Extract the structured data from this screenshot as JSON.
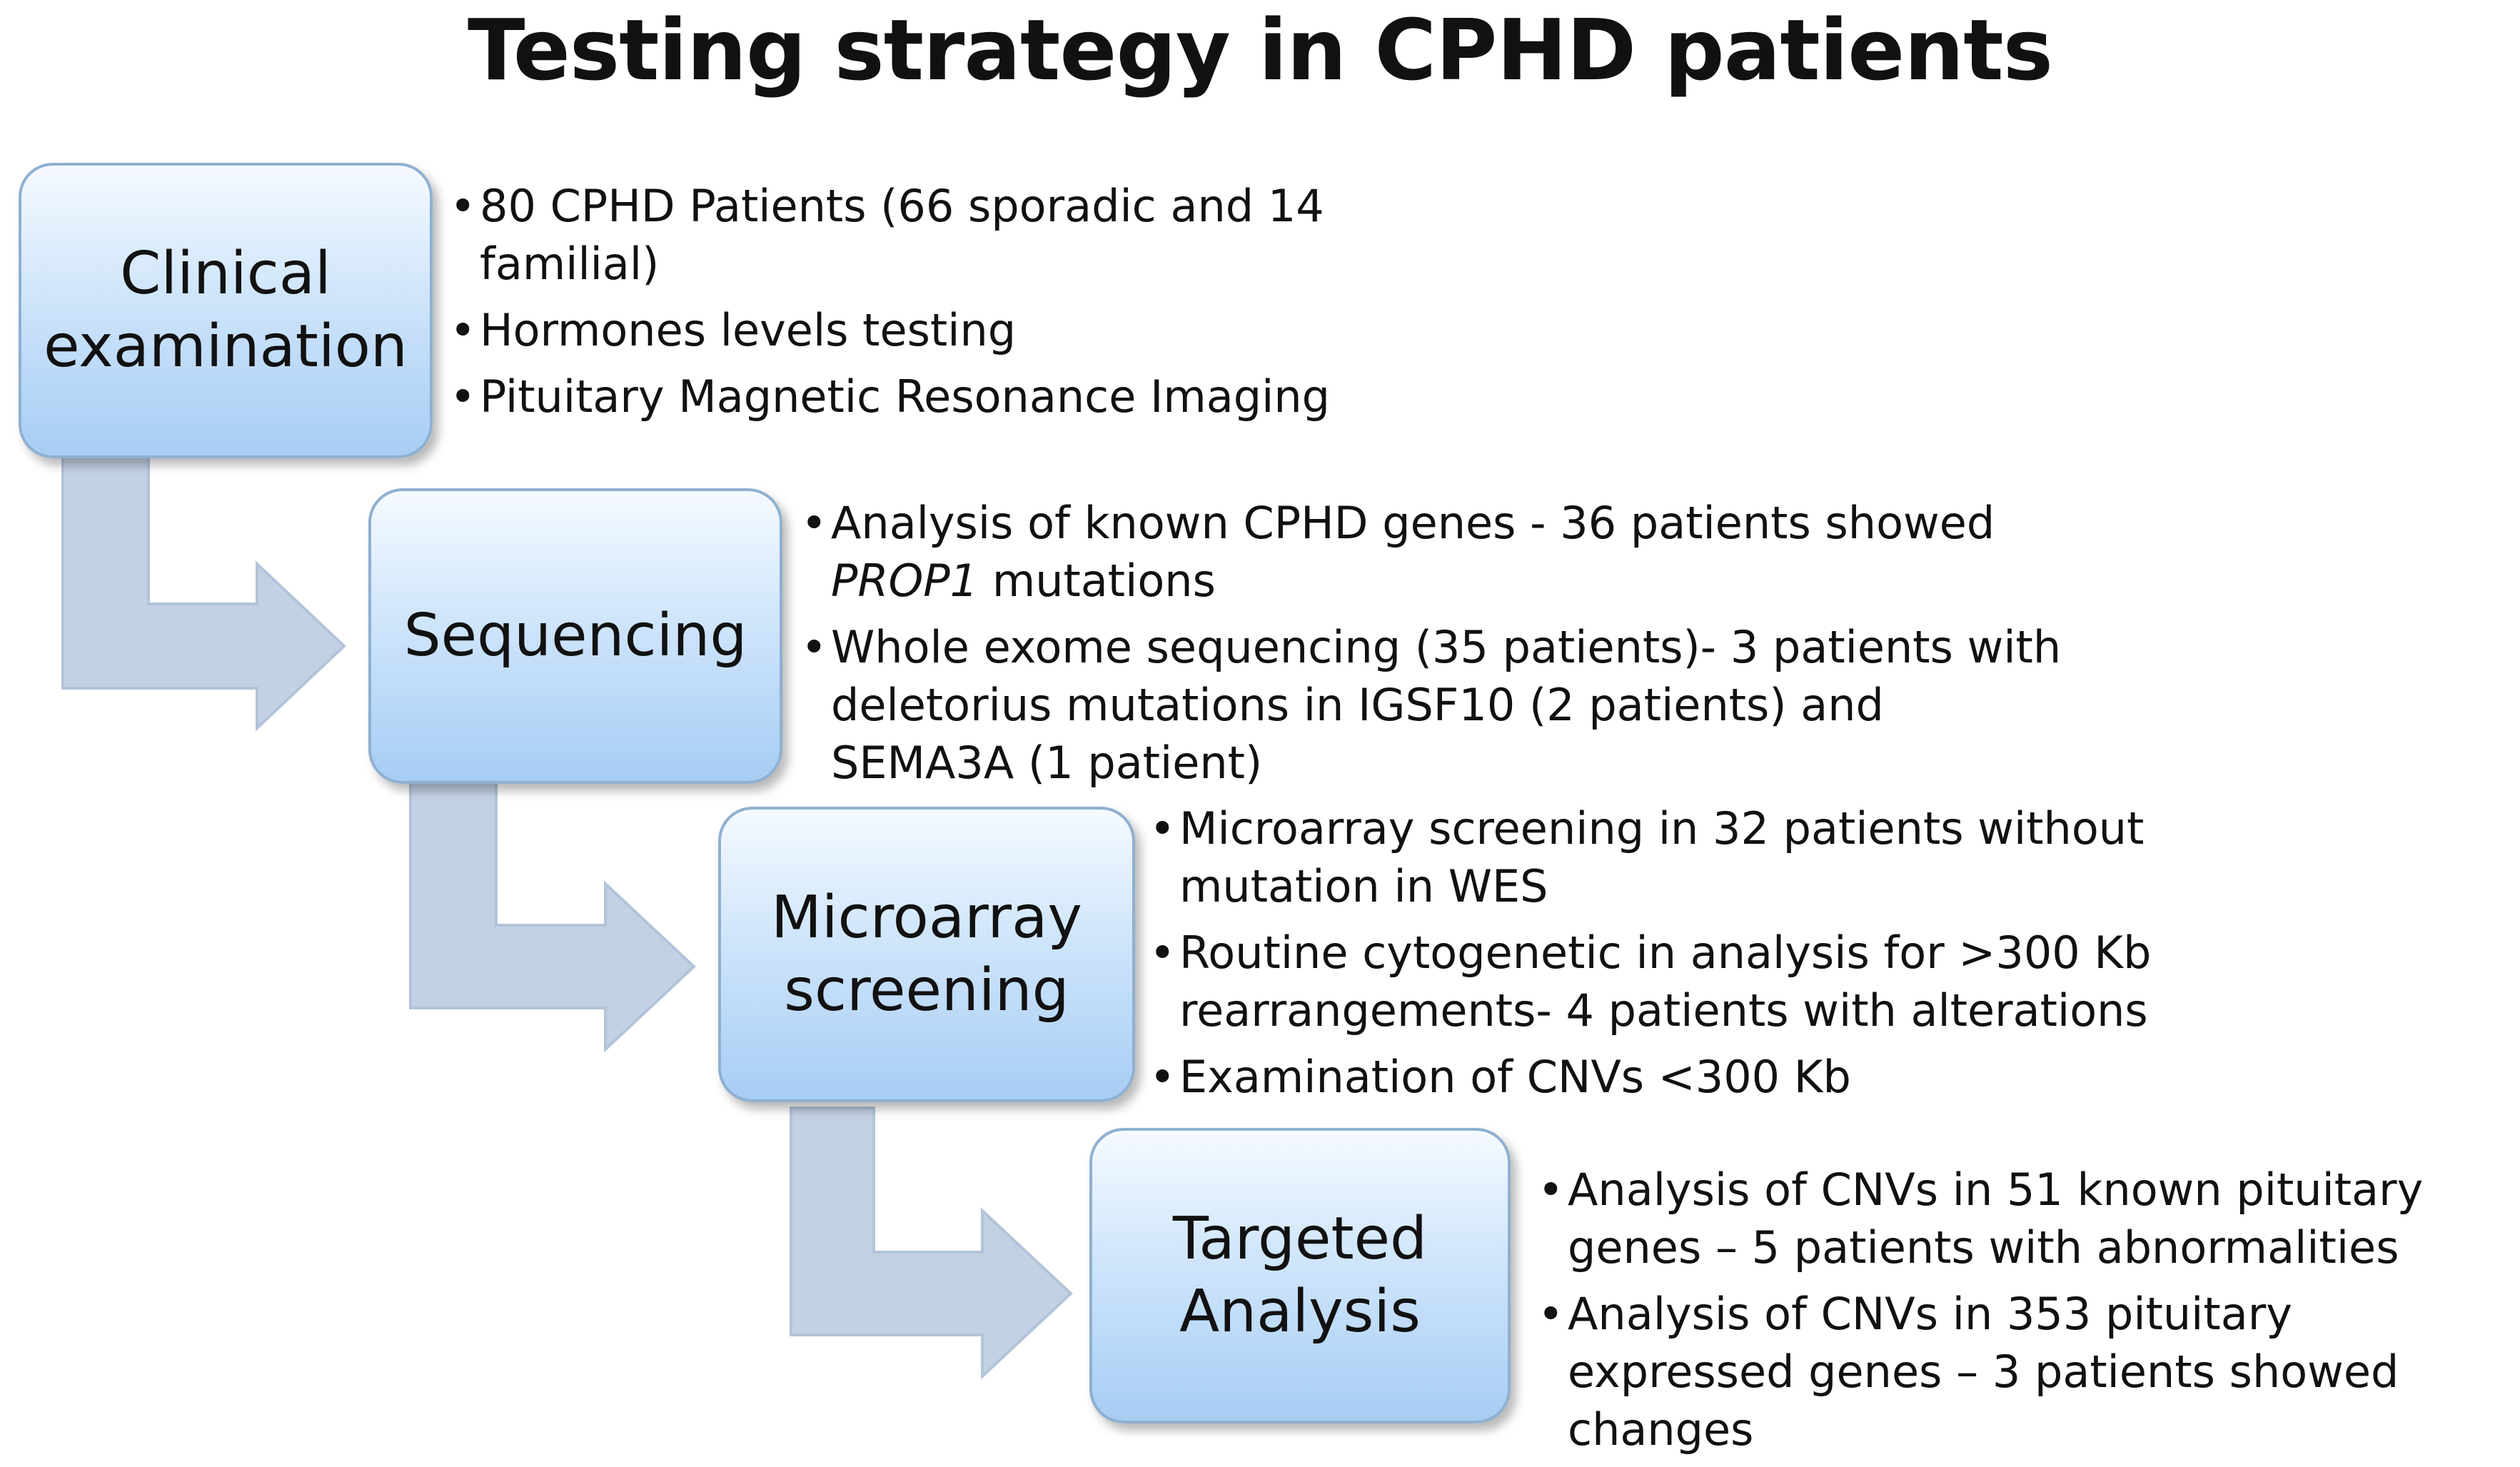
{
  "title": "Testing strategy in CPHD patients",
  "steps": [
    {
      "label": "Clinical\nexamination",
      "bullets": [
        "80 CPHD Patients (66 sporadic and 14 familial)",
        "Hormones levels testing",
        "Pituitary Magnetic Resonance Imaging"
      ]
    },
    {
      "label": "Sequencing",
      "bullets": [
        {
          "italic": "PROP1",
          "before": "Analysis of known CPHD genes - 36 patients showed ",
          "after": " mutations"
        },
        "Whole exome sequencing (35 patients)- 3 patients with deletorius mutations in IGSF10 (2 patients) and SEMA3A (1 patient)"
      ]
    },
    {
      "label": "Microarray\nscreening",
      "bullets": [
        "Microarray screening in 32 patients without mutation in WES",
        "Routine cytogenetic in analysis for >300 Kb rearrangements- 4 patients with alterations",
        "Examination of CNVs <300 Kb"
      ]
    },
    {
      "label": "Targeted\nAnalysis",
      "bullets": [
        "Analysis of CNVs in 51 known pituitary genes – 5 patients with abnormalities",
        "Analysis of CNVs in 353 pituitary expressed genes – 3 patients showed changes"
      ]
    }
  ],
  "colors": {
    "arrow_fill": "#c3d1e4",
    "arrow_stroke": "#b3c3d9",
    "box_border": "#8fb0d0"
  }
}
